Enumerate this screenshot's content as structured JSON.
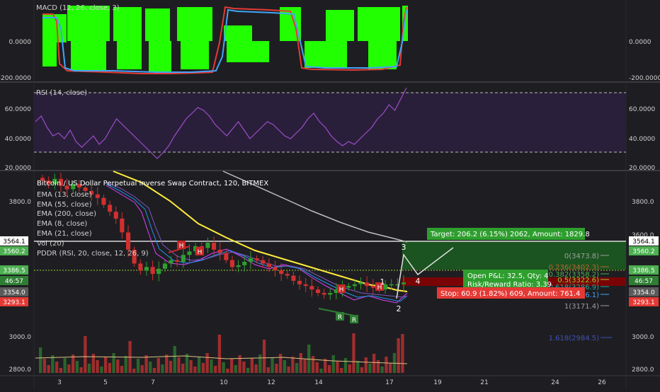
{
  "chart_data": [
    {
      "panel": "macd",
      "type": "area",
      "label": "MACD (12, 26, close, 3)",
      "y_ticks": [
        "0.0000",
        "-200.0000"
      ],
      "right_ticks": [
        "0.0000",
        "-200.0000"
      ],
      "ylim": [
        -230,
        230
      ],
      "histogram_color": "#22ff00",
      "macd_color": "#e53935",
      "signal_color": "#42a5f5"
    },
    {
      "panel": "rsi",
      "type": "line",
      "label": "RSI (14, close)",
      "y_ticks": [
        "60.0000",
        "40.0000",
        "20.0000"
      ],
      "right_ticks": [
        "60.0000",
        "40.0000",
        "20.0000"
      ],
      "ylim": [
        17,
        77
      ],
      "bands": [
        70,
        30
      ],
      "color": "#9c4dcc",
      "values": [
        50,
        54,
        46,
        40,
        42,
        38,
        44,
        36,
        32,
        36,
        40,
        34,
        38,
        45,
        52,
        48,
        44,
        40,
        36,
        32,
        28,
        24,
        28,
        33,
        40,
        46,
        52,
        56,
        60,
        58,
        54,
        48,
        44,
        40,
        45,
        50,
        44,
        38,
        42,
        46,
        50,
        48,
        44,
        40,
        38,
        42,
        46,
        52,
        56,
        50,
        46,
        40,
        36,
        33,
        36,
        34,
        38,
        42,
        46,
        52,
        56,
        62,
        58,
        66,
        74
      ]
    },
    {
      "panel": "price",
      "type": "candlestick",
      "title": "Bitcoin / US Dollar Perpetual Inverse Swap Contract, 120, BITMEX",
      "legend": [
        "EMA (13, close)",
        "EMA (55, close)",
        "EMA (200, close)",
        "EMA (8, close)",
        "EMA (21, close)",
        "Vol (20)",
        "PDDR (RSI, 20, close, 12, 26, 9)"
      ],
      "y_ticks": [
        "3800.0",
        "3000.0",
        "2800.0"
      ],
      "right_ticks": [
        "3800.0",
        "3600.0",
        "3000.0",
        "2800.0"
      ],
      "ylim": [
        2775,
        3950
      ],
      "x_ticks": [
        "3",
        "5",
        "7",
        "10",
        "12",
        "14",
        "17",
        "19",
        "21",
        "24",
        "26"
      ],
      "closes": [
        3900,
        3880,
        3910,
        3870,
        3850,
        3880,
        3860,
        3840,
        3820,
        3800,
        3760,
        3720,
        3680,
        3600,
        3500,
        3420,
        3380,
        3400,
        3360,
        3390,
        3420,
        3440,
        3430,
        3470,
        3490,
        3520,
        3510,
        3540,
        3500,
        3480,
        3440,
        3400,
        3410,
        3430,
        3450,
        3440,
        3420,
        3400,
        3380,
        3360,
        3350,
        3320,
        3300,
        3290,
        3270,
        3250,
        3240,
        3250,
        3270,
        3280,
        3290,
        3300,
        3310,
        3290,
        3280,
        3270,
        3300,
        3300,
        3300,
        3310
      ],
      "annotations": [
        "H",
        "H",
        "H",
        "H",
        "R",
        "R",
        "1",
        "2",
        "3",
        "4"
      ],
      "price_badges": [
        {
          "text": "3564.1",
          "kind": "last"
        },
        {
          "text": "3560.2",
          "kind": "ema"
        },
        {
          "text": "3386.5",
          "kind": "ema"
        },
        {
          "text": "46:57",
          "kind": "timer"
        },
        {
          "text": "3354.0",
          "kind": "close"
        },
        {
          "text": "3293.1",
          "kind": "stop"
        }
      ],
      "fib_levels": [
        {
          "label": "0(3473.8)",
          "color": "#9e9e9e"
        },
        {
          "label": "0.236(3402.3)",
          "color": "#c06030"
        },
        {
          "label": "0.382(3358.2)",
          "color": "#4caf50"
        },
        {
          "label": "0.5(3322.6)",
          "color": "#9acd32"
        },
        {
          "label": "0.618(3286.9)",
          "color": "#26a69a"
        },
        {
          "label": "0.786(3236.1)",
          "color": "#42a5f5"
        },
        {
          "label": "1(3171.4)",
          "color": "#9e9e9e"
        },
        {
          "label": "1.618(2984.5)",
          "color": "#3f51b5"
        }
      ],
      "position": {
        "target": "Target: 206.2 (6.15%) 2062, Amount: 1829.8",
        "pnl": "Open P&L: 32.5, Qty: 4",
        "rr": "Risk/Reward Ratio: 3.39",
        "stop": "Stop: 60.9 (1.82%) 609, Amount: 761.4"
      },
      "volume_color": "#cc3333"
    }
  ]
}
